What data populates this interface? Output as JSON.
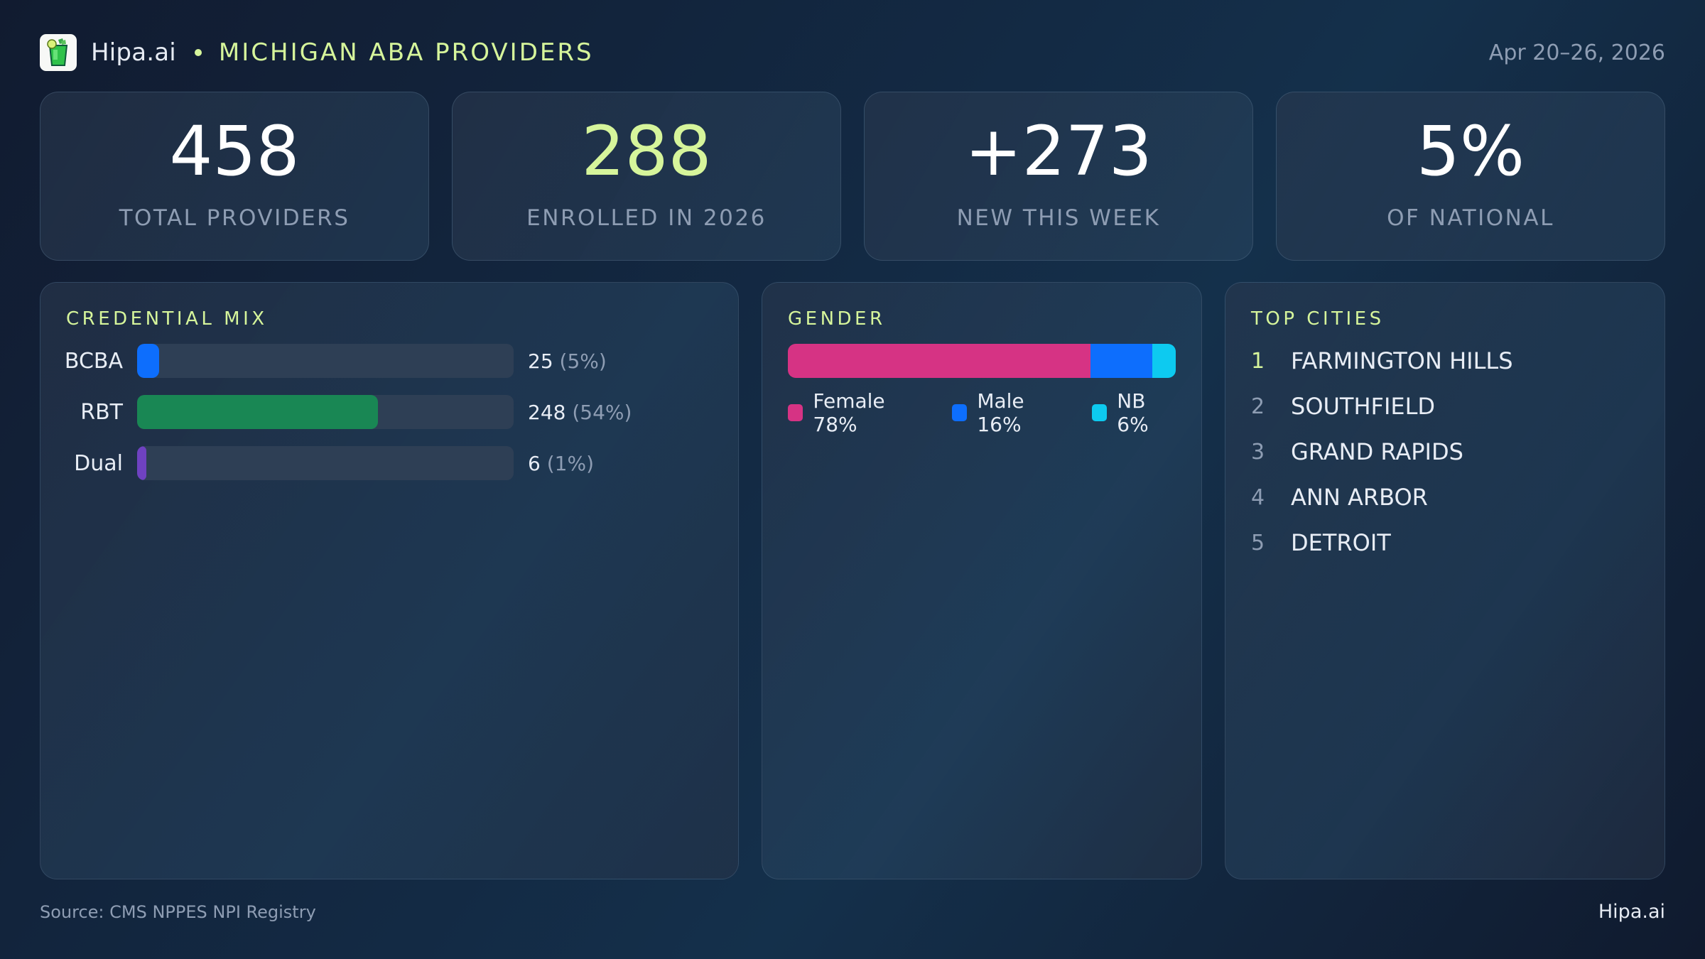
{
  "header": {
    "logo_icon": "mojito-glass-icon",
    "brand": "Hipa.ai",
    "separator": "•",
    "title": "MICHIGAN ABA PROVIDERS",
    "date_range": "Apr 20–26, 2026"
  },
  "kpis": [
    {
      "value": "458",
      "label": "TOTAL PROVIDERS",
      "color": "#ffffff"
    },
    {
      "value": "288",
      "label": "ENROLLED IN 2026",
      "color": "#d6f59b"
    },
    {
      "value": "+273",
      "label": "NEW THIS WEEK",
      "color": "#ffffff"
    },
    {
      "value": "5%",
      "label": "OF NATIONAL",
      "color": "#ffffff"
    }
  ],
  "credential_mix": {
    "title": "CREDENTIAL MIX",
    "rows": [
      {
        "label": "BCBA",
        "count": "25",
        "pct_text": "(5%)",
        "pct": 5,
        "color": "#0d6efd"
      },
      {
        "label": "RBT",
        "count": "248",
        "pct_text": "(54%)",
        "pct": 54,
        "color": "#198754"
      },
      {
        "label": "Dual",
        "count": "6",
        "pct_text": "(1%)",
        "pct": 1,
        "color": "#6f42c1"
      }
    ]
  },
  "gender": {
    "title": "GENDER",
    "segments": [
      {
        "label": "Female 78%",
        "pct": 78,
        "color": "#d63384"
      },
      {
        "label": "Male 16%",
        "pct": 16,
        "color": "#0d6efd"
      },
      {
        "label": "NB 6%",
        "pct": 6,
        "color": "#0dcaf0"
      }
    ]
  },
  "top_cities": {
    "title": "TOP CITIES",
    "items": [
      {
        "rank": "1",
        "name": "FARMINGTON HILLS"
      },
      {
        "rank": "2",
        "name": "SOUTHFIELD"
      },
      {
        "rank": "3",
        "name": "GRAND RAPIDS"
      },
      {
        "rank": "4",
        "name": "ANN ARBOR"
      },
      {
        "rank": "5",
        "name": "DETROIT"
      }
    ]
  },
  "footer": {
    "source": "Source: CMS NPPES NPI Registry",
    "brand": "Hipa.ai"
  },
  "colors": {
    "accent": "#d6f59b",
    "muted": "#8e9db3",
    "bcba": "#0d6efd",
    "rbt": "#198754",
    "dual": "#6f42c1",
    "female": "#d63384",
    "male": "#0d6efd",
    "nb": "#0dcaf0"
  },
  "chart_data": [
    {
      "type": "bar",
      "title": "CREDENTIAL MIX",
      "orientation": "horizontal",
      "categories": [
        "BCBA",
        "RBT",
        "Dual"
      ],
      "values": [
        25,
        248,
        6
      ],
      "percent": [
        5,
        54,
        1
      ],
      "xlim": [
        0,
        100
      ],
      "grid": false
    },
    {
      "type": "bar",
      "title": "GENDER",
      "orientation": "horizontal-stacked",
      "categories": [
        "Female",
        "Male",
        "NB"
      ],
      "values": [
        78,
        16,
        6
      ],
      "unit": "%",
      "legend_position": "bottom"
    }
  ]
}
